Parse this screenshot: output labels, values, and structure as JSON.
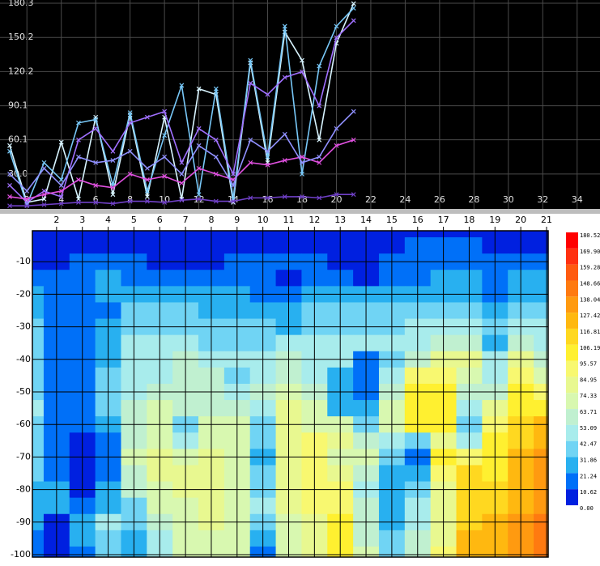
{
  "chart_data": [
    {
      "type": "line",
      "x": [
        1,
        2,
        3,
        4,
        5,
        6,
        7,
        8,
        9,
        10,
        11,
        12,
        13,
        14,
        15,
        16,
        17,
        18,
        19,
        20,
        21
      ],
      "xlim": [
        1,
        35
      ],
      "xticks": [
        2,
        4,
        6,
        8,
        10,
        12,
        14,
        16,
        18,
        20,
        22,
        24,
        26,
        28,
        30,
        32,
        34
      ],
      "ylim": [
        0,
        180.3
      ],
      "yticks": [
        {
          "value": 30.0,
          "label": "30.0"
        },
        60.1,
        90.1,
        120.2,
        150.2,
        180.3
      ],
      "grid": true,
      "series": [
        {
          "color": "#d8f4ff",
          "values": [
            55,
            5,
            8,
            58,
            8,
            80,
            12,
            82,
            10,
            80,
            8,
            105,
            100,
            5,
            128,
            40,
            155,
            130,
            60,
            145,
            180
          ]
        },
        {
          "color": "#78c8f8",
          "values": [
            50,
            3,
            40,
            25,
            75,
            78,
            20,
            84,
            15,
            64,
            108,
            12,
            105,
            8,
            130,
            45,
            160,
            30,
            125,
            160,
            176
          ]
        },
        {
          "color": "#a070ff",
          "values": [
            20,
            5,
            15,
            10,
            60,
            70,
            50,
            75,
            80,
            85,
            40,
            70,
            60,
            30,
            110,
            100,
            115,
            120,
            90,
            150,
            165
          ]
        },
        {
          "color": "#e050e0",
          "values": [
            10,
            8,
            12,
            15,
            25,
            20,
            18,
            30,
            25,
            28,
            22,
            35,
            30,
            25,
            40,
            38,
            42,
            45,
            40,
            55,
            60
          ]
        },
        {
          "color": "#7040c8",
          "values": [
            2,
            2,
            3,
            4,
            5,
            5,
            4,
            6,
            6,
            5,
            7,
            8,
            6,
            6,
            9,
            9,
            10,
            10,
            9,
            12,
            12
          ]
        },
        {
          "color": "#9090ff",
          "values": [
            30,
            15,
            35,
            20,
            45,
            40,
            42,
            50,
            35,
            45,
            30,
            55,
            45,
            20,
            60,
            50,
            65,
            40,
            45,
            70,
            85
          ]
        }
      ]
    },
    {
      "type": "contour",
      "x": [
        1,
        2,
        3,
        4,
        5,
        6,
        7,
        8,
        9,
        10,
        11,
        12,
        13,
        14,
        15,
        16,
        17,
        18,
        19,
        20,
        21
      ],
      "y": [
        0,
        -5,
        -10,
        -15,
        -20,
        -25,
        -30,
        -35,
        -40,
        -45,
        -50,
        -55,
        -60,
        -65,
        -70,
        -75,
        -80,
        -85,
        -90,
        -95,
        -100
      ],
      "xlim": [
        1,
        21
      ],
      "xticks": [
        2,
        3,
        4,
        5,
        6,
        7,
        8,
        9,
        10,
        11,
        12,
        13,
        14,
        15,
        16,
        17,
        18,
        19,
        20,
        21
      ],
      "ylim": [
        -100,
        0
      ],
      "yticks": [
        -10,
        -20,
        -30,
        -40,
        -50,
        -60,
        -70,
        -80,
        -90,
        -100
      ],
      "z": [
        [
          5,
          5,
          5,
          5,
          5,
          5,
          5,
          5,
          5,
          5,
          5,
          5,
          5,
          5,
          5,
          5,
          5,
          5,
          5,
          5,
          5
        ],
        [
          8,
          8,
          8,
          8,
          8,
          8,
          8,
          8,
          8,
          8,
          8,
          8,
          8,
          8,
          8,
          12,
          12,
          12,
          8,
          8,
          8
        ],
        [
          10,
          10,
          12,
          14,
          12,
          10,
          8,
          10,
          12,
          12,
          14,
          12,
          10,
          10,
          12,
          12,
          14,
          14,
          12,
          12,
          12
        ],
        [
          20,
          18,
          20,
          22,
          18,
          16,
          14,
          16,
          18,
          14,
          10,
          14,
          18,
          10,
          18,
          20,
          22,
          22,
          20,
          22,
          22
        ],
        [
          22,
          20,
          18,
          22,
          24,
          26,
          24,
          24,
          26,
          18,
          16,
          24,
          26,
          24,
          26,
          28,
          28,
          26,
          20,
          26,
          26
        ],
        [
          30,
          18,
          14,
          20,
          34,
          36,
          34,
          30,
          30,
          28,
          24,
          34,
          34,
          32,
          34,
          36,
          38,
          36,
          30,
          36,
          36
        ],
        [
          34,
          16,
          12,
          22,
          40,
          40,
          38,
          36,
          38,
          36,
          30,
          38,
          40,
          40,
          42,
          44,
          48,
          48,
          40,
          48,
          46
        ],
        [
          36,
          14,
          12,
          26,
          44,
          44,
          44,
          40,
          40,
          34,
          44,
          46,
          46,
          44,
          46,
          50,
          56,
          58,
          30,
          58,
          52
        ],
        [
          38,
          14,
          14,
          30,
          46,
          48,
          56,
          48,
          44,
          46,
          54,
          48,
          44,
          12,
          40,
          60,
          80,
          78,
          44,
          80,
          60
        ],
        [
          40,
          12,
          16,
          38,
          50,
          52,
          58,
          54,
          40,
          50,
          60,
          52,
          30,
          14,
          50,
          90,
          94,
          70,
          50,
          92,
          70
        ],
        [
          42,
          12,
          18,
          40,
          52,
          58,
          60,
          56,
          52,
          54,
          70,
          60,
          26,
          20,
          60,
          96,
          98,
          60,
          60,
          96,
          86
        ],
        [
          44,
          14,
          20,
          42,
          56,
          64,
          62,
          60,
          58,
          48,
          76,
          66,
          30,
          26,
          66,
          98,
          100,
          50,
          76,
          100,
          98
        ],
        [
          40,
          14,
          12,
          30,
          60,
          72,
          34,
          68,
          66,
          40,
          78,
          72,
          72,
          40,
          70,
          100,
          96,
          40,
          90,
          112,
          120
        ],
        [
          36,
          14,
          10,
          20,
          62,
          74,
          50,
          72,
          74,
          36,
          80,
          86,
          80,
          60,
          52,
          40,
          80,
          50,
          96,
          116,
          124
        ],
        [
          34,
          16,
          6,
          12,
          64,
          76,
          74,
          76,
          72,
          30,
          82,
          90,
          70,
          68,
          40,
          20,
          96,
          92,
          100,
          120,
          128
        ],
        [
          32,
          20,
          6,
          14,
          60,
          76,
          76,
          76,
          70,
          34,
          84,
          92,
          84,
          60,
          30,
          30,
          90,
          110,
          104,
          122,
          132
        ],
        [
          30,
          24,
          10,
          22,
          54,
          74,
          76,
          78,
          72,
          40,
          84,
          94,
          90,
          52,
          28,
          40,
          84,
          112,
          112,
          124,
          136
        ],
        [
          26,
          22,
          18,
          30,
          40,
          66,
          74,
          76,
          74,
          44,
          80,
          88,
          94,
          56,
          30,
          46,
          80,
          114,
          116,
          126,
          138
        ],
        [
          22,
          10,
          28,
          50,
          34,
          54,
          72,
          76,
          72,
          42,
          74,
          84,
          96,
          60,
          22,
          50,
          82,
          116,
          118,
          128,
          140
        ],
        [
          20,
          8,
          24,
          40,
          30,
          50,
          70,
          74,
          68,
          26,
          70,
          80,
          98,
          62,
          34,
          54,
          84,
          118,
          120,
          130,
          142
        ],
        [
          18,
          8,
          20,
          34,
          28,
          48,
          68,
          72,
          64,
          20,
          68,
          78,
          100,
          64,
          40,
          56,
          86,
          120,
          122,
          132,
          144
        ]
      ],
      "levels": [
        180.52,
        {
          "value": 169.9,
          "label": "169.90"
        },
        159.28,
        148.66,
        138.04,
        127.42,
        116.81,
        106.19,
        95.57,
        84.95,
        74.33,
        63.71,
        53.09,
        42.47,
        31.86,
        21.24,
        10.62,
        {
          "value": 0,
          "label": "0.00"
        }
      ],
      "colors": [
        "#ff0000",
        "#ff3010",
        "#ff5a10",
        "#ff7a10",
        "#ff9a10",
        "#ffb810",
        "#ffd820",
        "#fff030",
        "#f8f870",
        "#e8f890",
        "#d8f8b0",
        "#c0f0d0",
        "#a8ecec",
        "#70d4f4",
        "#28b0f0",
        "#0070f8",
        "#0020e0"
      ]
    }
  ]
}
